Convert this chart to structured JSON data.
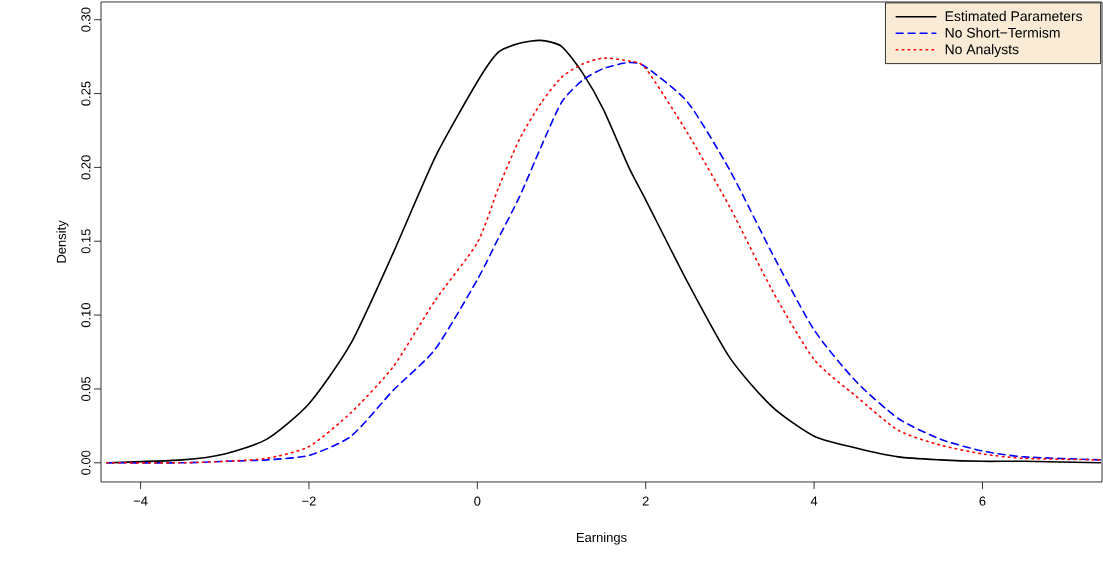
{
  "chart_data": {
    "type": "line",
    "xlabel": "Earnings",
    "ylabel": "Density",
    "x": [
      -4.4,
      -3.5,
      -3,
      -2.5,
      -2,
      -1.5,
      -1,
      -0.5,
      0,
      0.25,
      0.5,
      0.75,
      1,
      1.25,
      1.5,
      1.8,
      2,
      2.5,
      3,
      3.5,
      4,
      4.5,
      5,
      5.5,
      6,
      6.5,
      7.4
    ],
    "series": [
      {
        "name": "Estimated Parameters",
        "color": "#000000",
        "line_style": "solid",
        "values": [
          0,
          0.002,
          0.006,
          0.016,
          0.04,
          0.081,
          0.142,
          0.207,
          0.258,
          0.278,
          0.284,
          0.286,
          0.282,
          0.264,
          0.239,
          0.2,
          0.178,
          0.122,
          0.071,
          0.038,
          0.018,
          0.01,
          0.004,
          0.002,
          0.001,
          0.001,
          0
        ]
      },
      {
        "name": "No Short−Termism",
        "color": "#0000ff",
        "line_style": "dashed",
        "values": [
          0,
          0,
          0.001,
          0.002,
          0.005,
          0.018,
          0.049,
          0.077,
          0.124,
          0.152,
          0.18,
          0.213,
          0.244,
          0.259,
          0.267,
          0.271,
          0.268,
          0.244,
          0.198,
          0.142,
          0.09,
          0.055,
          0.03,
          0.016,
          0.008,
          0.004,
          0.002
        ]
      },
      {
        "name": "No Analysts",
        "color": "#ff0000",
        "line_style": "dotted",
        "values": [
          0,
          0,
          0.001,
          0.003,
          0.011,
          0.034,
          0.065,
          0.11,
          0.149,
          0.186,
          0.219,
          0.243,
          0.261,
          0.27,
          0.274,
          0.272,
          0.267,
          0.223,
          0.173,
          0.117,
          0.07,
          0.045,
          0.022,
          0.012,
          0.006,
          0.003,
          0.002
        ]
      }
    ],
    "xlim": [
      -4.47,
      7.42
    ],
    "ylim": [
      -0.013,
      0.312
    ],
    "xticks": [
      {
        "value": -4,
        "label": "−4"
      },
      {
        "value": -2,
        "label": "−2"
      },
      0,
      2,
      4,
      6
    ],
    "yticks": [
      {
        "value": 0,
        "label": "0.00"
      },
      0.05,
      {
        "value": 0.1,
        "label": "0.10"
      },
      0.15,
      {
        "value": 0.2,
        "label": "0.20"
      },
      0.25,
      {
        "value": 0.3,
        "label": "0.30"
      }
    ],
    "legend": "top right",
    "grid": false
  }
}
